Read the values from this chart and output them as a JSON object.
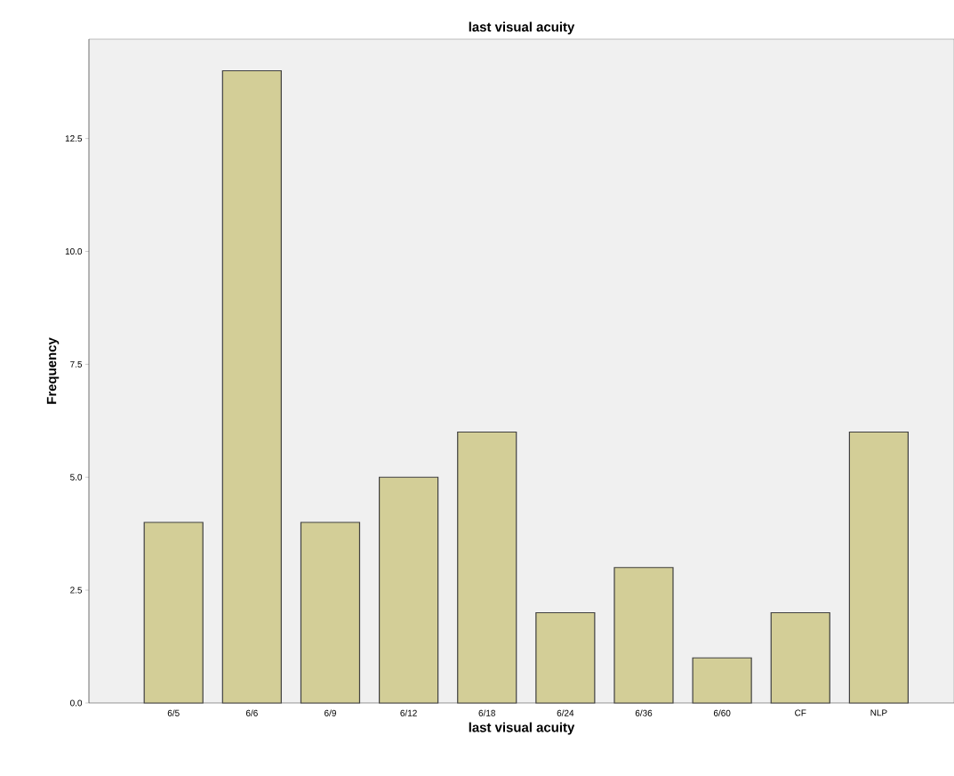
{
  "chart_data": {
    "type": "bar",
    "title": "last visual acuity",
    "xlabel": "last visual acuity",
    "ylabel": "Frequency",
    "categories": [
      "6/5",
      "6/6",
      "6/9",
      "6/12",
      "6/18",
      "6/24",
      "6/36",
      "6/60",
      "CF",
      "NLP"
    ],
    "values": [
      4,
      14,
      4,
      5,
      6,
      2,
      3,
      1,
      2,
      6
    ],
    "color": "#d3ce97",
    "ylim": [
      0,
      14.7
    ],
    "yticks": [
      {
        "value": 0,
        "label": "0.0"
      },
      {
        "value": 2.5,
        "label": "2.5"
      },
      {
        "value": 5,
        "label": "5.0"
      },
      {
        "value": 7.5,
        "label": "7.5"
      },
      {
        "value": 10,
        "label": "10.0"
      },
      {
        "value": 12.5,
        "label": "12.5"
      }
    ],
    "grid": false
  }
}
